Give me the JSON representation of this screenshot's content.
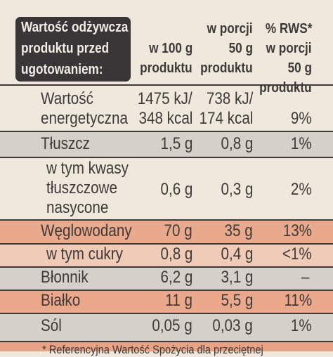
{
  "colors": {
    "background": "#efe9dd",
    "text": "#3f3a38",
    "header_label_bg": "#3a3536",
    "header_label_text": "#f2ede6",
    "row_band_gray": "#d6d0cb",
    "row_band_salmon": "#e9a98d",
    "row_band_peach": "#f0ccb8"
  },
  "header": {
    "title": [
      "Wartość odżywcza",
      "produktu przed",
      "ugotowaniem:"
    ],
    "col_100g": [
      "w 100 g",
      "produktu"
    ],
    "col_portion": [
      "w porcji",
      "50 g",
      "produktu"
    ],
    "col_rws": [
      "% RWS*",
      "w porcji",
      "50 g",
      "produktu"
    ]
  },
  "rows": [
    {
      "name": [
        "Wartość",
        "energetyczna"
      ],
      "per100": [
        "1475 kJ/",
        "348 kcal"
      ],
      "portion": [
        "738 kJ/",
        "174 kcal"
      ],
      "rws": "9%"
    },
    {
      "name": [
        "Tłuszcz"
      ],
      "per100": [
        "1,5 g"
      ],
      "portion": [
        "0,8 g"
      ],
      "rws": "1%"
    },
    {
      "name": [
        "w tym kwasy",
        "tłuszczowe",
        "nasycone"
      ],
      "per100": [
        "0,6 g"
      ],
      "portion": [
        "0,3 g"
      ],
      "rws": "2%"
    },
    {
      "name": [
        "Węglowodany"
      ],
      "per100": [
        "70 g"
      ],
      "portion": [
        "35 g"
      ],
      "rws": "13%"
    },
    {
      "name": [
        "w tym cukry"
      ],
      "per100": [
        "0,8 g"
      ],
      "portion": [
        "0,4 g"
      ],
      "rws": "<1%"
    },
    {
      "name": [
        "Błonnik"
      ],
      "per100": [
        "6,2 g"
      ],
      "portion": [
        "3,1 g"
      ],
      "rws": "–"
    },
    {
      "name": [
        "Białko"
      ],
      "per100": [
        "11 g"
      ],
      "portion": [
        "5,5 g"
      ],
      "rws": "11%"
    },
    {
      "name": [
        "Sól"
      ],
      "per100": [
        "0,05 g"
      ],
      "portion": [
        "0,03 g"
      ],
      "rws": "1%"
    }
  ],
  "footnote": "* Referencyjna Wartość Spożycia dla przeciętnej"
}
